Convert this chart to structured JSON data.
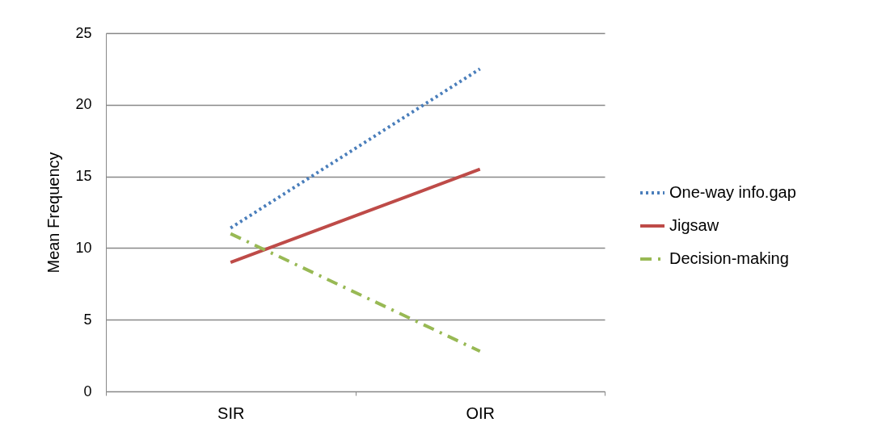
{
  "chart_data": {
    "type": "line",
    "ylabel": "Mean Frequency",
    "categories": [
      "SIR",
      "OIR"
    ],
    "series": [
      {
        "name": "One-way info.gap",
        "color": "#4a7ebb",
        "line_style": "dotted",
        "values": [
          11.4,
          22.5
        ]
      },
      {
        "name": "Jigsaw",
        "color": "#be4b48",
        "line_style": "solid",
        "values": [
          9.0,
          15.5
        ]
      },
      {
        "name": "Decision-making",
        "color": "#98b954",
        "line_style": "dashed",
        "values": [
          11.0,
          2.8
        ]
      }
    ],
    "ylim": [
      0,
      25
    ],
    "yticks": [
      0,
      5,
      10,
      15,
      20,
      25
    ],
    "grid": "y",
    "legend": "right",
    "marker": "none"
  }
}
